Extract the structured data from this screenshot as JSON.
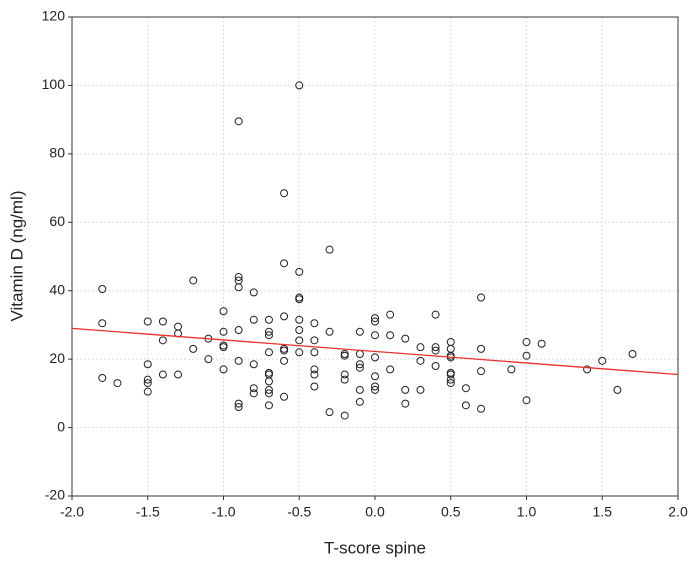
{
  "chart_data": {
    "type": "scatter",
    "x_label": "T-score spine",
    "y_label": "Vitamin D (ng/ml)",
    "xlim": [
      -2,
      2
    ],
    "ylim": [
      -20,
      120
    ],
    "xticks": [
      {
        "value": -2,
        "label": "-2.0"
      },
      {
        "value": -1.5,
        "label": "-1.5"
      },
      {
        "value": -1,
        "label": "-1.0"
      },
      {
        "value": -0.5,
        "label": "-0.5"
      },
      {
        "value": 0,
        "label": "0.0"
      },
      {
        "value": 0.5,
        "label": "0.5"
      },
      {
        "value": 1,
        "label": "1.0"
      },
      {
        "value": 1.5,
        "label": "1.5"
      },
      {
        "value": 2,
        "label": "2.0"
      }
    ],
    "yticks": [
      -20,
      0,
      20,
      40,
      60,
      80,
      100,
      120
    ],
    "grid": true,
    "point_color": "#222222",
    "trend_line": {
      "color": "#e8302a",
      "x": [
        -2,
        2
      ],
      "y": [
        29,
        15.5
      ]
    },
    "x": [
      -1.8,
      -1.8,
      -1.8,
      -1.7,
      -1.5,
      -1.5,
      -1.5,
      -1.5,
      -1.5,
      -1.4,
      -1.4,
      -1.4,
      -1.3,
      -1.3,
      -1.3,
      -1.2,
      -1.2,
      -1.1,
      -1.1,
      -1.0,
      -1.0,
      -1.0,
      -1.0,
      -1.0,
      -0.9,
      -0.9,
      -0.9,
      -0.9,
      -0.9,
      -0.9,
      -0.9,
      -0.9,
      -0.8,
      -0.8,
      -0.8,
      -0.8,
      -0.8,
      -0.7,
      -0.7,
      -0.7,
      -0.7,
      -0.7,
      -0.7,
      -0.7,
      -0.7,
      -0.7,
      -0.7,
      -0.6,
      -0.6,
      -0.6,
      -0.6,
      -0.6,
      -0.6,
      -0.6,
      -0.5,
      -0.5,
      -0.5,
      -0.5,
      -0.5,
      -0.5,
      -0.5,
      -0.5,
      -0.4,
      -0.4,
      -0.4,
      -0.4,
      -0.4,
      -0.4,
      -0.3,
      -0.3,
      -0.3,
      -0.2,
      -0.2,
      -0.2,
      -0.2,
      -0.2,
      -0.1,
      -0.1,
      -0.1,
      -0.1,
      -0.1,
      -0.1,
      0.0,
      0.0,
      0.0,
      0.0,
      0.0,
      0.0,
      0.0,
      0.1,
      0.1,
      0.1,
      0.2,
      0.2,
      0.2,
      0.3,
      0.3,
      0.3,
      0.4,
      0.4,
      0.4,
      0.4,
      0.5,
      0.5,
      0.5,
      0.5,
      0.5,
      0.5,
      0.5,
      0.5,
      0.6,
      0.6,
      0.7,
      0.7,
      0.7,
      0.7,
      0.9,
      1.0,
      1.0,
      1.0,
      1.1,
      1.4,
      1.5,
      1.6,
      1.7
    ],
    "y": [
      40.5,
      30.5,
      14.5,
      13,
      31,
      18.5,
      14,
      13,
      10.5,
      31,
      25.5,
      15.5,
      29.5,
      27.5,
      15.5,
      43,
      23,
      26,
      20,
      34,
      28,
      24,
      23.5,
      17,
      89.5,
      44,
      43,
      41,
      28.5,
      19.5,
      7,
      6,
      39.5,
      31.5,
      18.5,
      11.5,
      10,
      31.5,
      28,
      27,
      22,
      16,
      15.5,
      13.5,
      11,
      10,
      6.5,
      68.5,
      48,
      32.5,
      23,
      22.5,
      19.5,
      9,
      100,
      45.5,
      38,
      37.5,
      31.5,
      28.5,
      25.5,
      22,
      30.5,
      25.5,
      22,
      17,
      15.5,
      12,
      52,
      28,
      4.5,
      21.5,
      21,
      15.5,
      14,
      3.5,
      28,
      21.5,
      18.5,
      17.5,
      11,
      7.5,
      32,
      31,
      27,
      20.5,
      15,
      12,
      11,
      33,
      27,
      17,
      26,
      11,
      7,
      23.5,
      19.5,
      11,
      33,
      23.5,
      22.5,
      18,
      25,
      23,
      21,
      20.5,
      16,
      15.5,
      14,
      13,
      11.5,
      6.5,
      38,
      23,
      16.5,
      5.5,
      17,
      25,
      21,
      8,
      24.5,
      17,
      19.5,
      11,
      21.5
    ]
  }
}
